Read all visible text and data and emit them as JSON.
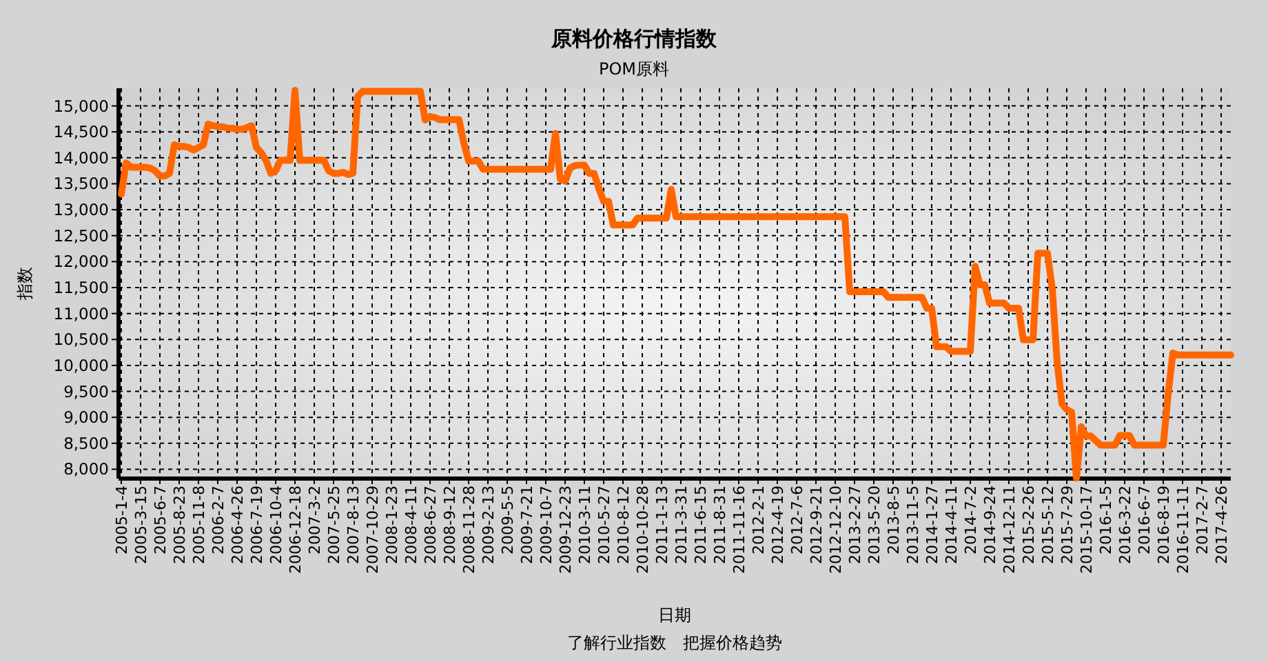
{
  "chart_data": {
    "type": "line",
    "title": "原料价格行情指数",
    "subtitle": "POM原料",
    "xlabel": "日期",
    "ylabel": "指数",
    "annotations": [
      "了解行业指数　把握价格趋势"
    ],
    "categories": [
      "2005-1-4",
      null,
      null,
      null,
      "2005-3-15",
      null,
      null,
      null,
      "2005-6-7",
      null,
      null,
      null,
      "2005-8-23",
      null,
      null,
      null,
      "2005-11-8",
      null,
      null,
      null,
      "2006-2-7",
      null,
      null,
      null,
      "2006-4-26",
      null,
      null,
      null,
      "2006-7-19",
      null,
      null,
      null,
      "2006-10-4",
      null,
      null,
      null,
      "2006-12-18",
      null,
      null,
      null,
      "2007-3-2",
      null,
      null,
      null,
      "2007-5-25",
      null,
      null,
      null,
      "2007-8-13",
      null,
      null,
      null,
      "2007-10-29",
      null,
      null,
      null,
      "2008-1-23",
      null,
      null,
      null,
      "2008-4-11",
      null,
      null,
      null,
      "2008-6-27",
      null,
      null,
      null,
      "2008-9-12",
      null,
      null,
      null,
      "2008-11-28",
      null,
      null,
      null,
      "2009-2-13",
      null,
      null,
      null,
      "2009-5-5",
      null,
      null,
      null,
      "2009-7-21",
      null,
      null,
      null,
      "2009-10-7",
      null,
      null,
      null,
      "2009-12-23",
      null,
      null,
      null,
      "2010-3-11",
      null,
      null,
      null,
      "2010-5-27",
      null,
      null,
      null,
      "2010-8-12",
      null,
      null,
      null,
      "2010-10-28",
      null,
      null,
      null,
      "2011-1-13",
      null,
      null,
      null,
      "2011-3-31",
      null,
      null,
      null,
      "2011-6-15",
      null,
      null,
      null,
      "2011-8-31",
      null,
      null,
      null,
      "2011-11-16",
      null,
      null,
      null,
      "2012-2-1",
      null,
      null,
      null,
      "2012-4-19",
      null,
      null,
      null,
      "2012-7-6",
      null,
      null,
      null,
      "2012-9-21",
      null,
      null,
      null,
      "2012-12-10",
      null,
      null,
      null,
      "2013-2-27",
      null,
      null,
      null,
      "2013-5-20",
      null,
      null,
      null,
      "2013-8-5",
      null,
      null,
      null,
      "2013-11-5",
      null,
      null,
      null,
      "2014-1-27",
      null,
      null,
      null,
      "2014-4-11",
      null,
      null,
      null,
      "2014-7-2",
      null,
      null,
      null,
      "2014-9-24",
      null,
      null,
      null,
      "2014-12-11",
      null,
      null,
      null,
      "2015-2-26",
      null,
      null,
      null,
      "2015-5-12",
      null,
      null,
      null,
      "2015-7-29",
      null,
      null,
      null,
      "2015-10-17",
      null,
      null,
      null,
      "2016-1-5",
      null,
      null,
      null,
      "2016-3-22",
      null,
      null,
      null,
      "2016-6-7",
      null,
      null,
      null,
      "2016-8-19",
      null,
      null,
      null,
      "2016-11-11",
      null,
      null,
      null,
      "2017-2-7",
      null,
      null,
      null,
      "2017-4-26",
      null,
      null
    ],
    "series": [
      {
        "color": "#ff6600",
        "values": [
          13300,
          13900,
          13820,
          13820,
          13820,
          13820,
          13800,
          13750,
          13650,
          13650,
          13700,
          14250,
          14220,
          14220,
          14200,
          14150,
          14200,
          14250,
          14650,
          14620,
          14600,
          14600,
          14570,
          14570,
          14550,
          14550,
          14580,
          14620,
          14200,
          14100,
          13950,
          13700,
          13750,
          13950,
          13950,
          13950,
          15300,
          13950,
          13950,
          13950,
          13950,
          13950,
          13950,
          13750,
          13700,
          13700,
          13720,
          13680,
          13700,
          15180,
          15280,
          15280,
          15280,
          15280,
          15280,
          15280,
          15280,
          15280,
          15280,
          15280,
          15280,
          15280,
          15280,
          14730,
          14790,
          14780,
          14735,
          14735,
          14735,
          14735,
          14735,
          14295,
          13940,
          13940,
          13940,
          13780,
          13780,
          13780,
          13780,
          13780,
          13780,
          13780,
          13780,
          13780,
          13780,
          13780,
          13780,
          13780,
          13780,
          13780,
          14470,
          13590,
          13550,
          13800,
          13850,
          13860,
          13860,
          13700,
          13700,
          13410,
          13160,
          13160,
          12705,
          12705,
          12705,
          12705,
          12705,
          12840,
          12840,
          12840,
          12840,
          12840,
          12840,
          12840,
          13390,
          12865,
          12865,
          12865,
          12865,
          12865,
          12865,
          12865,
          12865,
          12865,
          12865,
          12865,
          12865,
          12865,
          12865,
          12865,
          12865,
          12865,
          12865,
          12865,
          12865,
          12865,
          12865,
          12865,
          12865,
          12865,
          12865,
          12865,
          12865,
          12865,
          12865,
          12865,
          12865,
          12865,
          12865,
          12865,
          12865,
          11420,
          11420,
          11420,
          11420,
          11420,
          11420,
          11420,
          11420,
          11310,
          11310,
          11310,
          11310,
          11310,
          11310,
          11310,
          11310,
          11100,
          11100,
          10360,
          10360,
          10360,
          10270,
          10270,
          10270,
          10270,
          10270,
          11910,
          11555,
          11555,
          11200,
          11200,
          11200,
          11200,
          11100,
          11100,
          11100,
          10495,
          10495,
          10495,
          12160,
          12160,
          12160,
          11470,
          10070,
          9260,
          9150,
          9100,
          7830,
          8820,
          8640,
          8640,
          8550,
          8465,
          8465,
          8465,
          8465,
          8650,
          8650,
          8650,
          8465,
          8465,
          8465,
          8465,
          8465,
          8465,
          8465,
          9440,
          10240,
          10200,
          10200,
          10200,
          10200,
          10200,
          10200,
          10200,
          10200,
          10200,
          10200,
          10200,
          10200
        ]
      }
    ],
    "ylim": [
      7820,
      15340
    ],
    "yticks": [
      {
        "value": 8000,
        "label": "8,000"
      },
      {
        "value": 8500,
        "label": "8,500"
      },
      {
        "value": 9000,
        "label": "9,000"
      },
      {
        "value": 9500,
        "label": "9,500"
      },
      {
        "value": 10000,
        "label": "10,000"
      },
      {
        "value": 10500,
        "label": "10,500"
      },
      {
        "value": 11000,
        "label": "11,000"
      },
      {
        "value": 11500,
        "label": "11,500"
      },
      {
        "value": 12000,
        "label": "12,000"
      },
      {
        "value": 12500,
        "label": "12,500"
      },
      {
        "value": 13000,
        "label": "13,000"
      },
      {
        "value": 13500,
        "label": "13,500"
      },
      {
        "value": 14000,
        "label": "14,000"
      },
      {
        "value": 14500,
        "label": "14,500"
      },
      {
        "value": 15000,
        "label": "15,000"
      }
    ],
    "grid": true,
    "line_style": "solid"
  }
}
